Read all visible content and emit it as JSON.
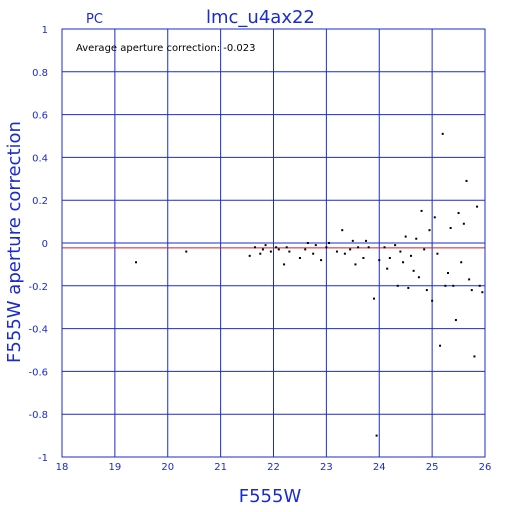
{
  "chart_data": {
    "type": "scatter",
    "title": "lmc_u4ax22",
    "tag": "PC",
    "annotation": "Average aperture correction: -0.023",
    "xlabel": "F555W",
    "ylabel": "F555W aperture correction",
    "xlim": [
      18,
      26
    ],
    "ylim": [
      -1,
      1
    ],
    "x_ticks": [
      18,
      19,
      20,
      21,
      22,
      23,
      24,
      25,
      26
    ],
    "y_ticks": [
      -1,
      -0.8,
      -0.6,
      -0.4,
      -0.2,
      0,
      0.2,
      0.4,
      0.6,
      0.8,
      1
    ],
    "x_tick_labels": [
      "18",
      "19",
      "20",
      "21",
      "22",
      "23",
      "24",
      "25",
      "26"
    ],
    "y_tick_labels": [
      "-1",
      "-0.8",
      "-0.6",
      "-0.4",
      "-0.2",
      "0",
      "0.2",
      "0.4",
      "0.6",
      "0.8",
      "1"
    ],
    "grid": true,
    "reference_lines": [
      {
        "y": 0,
        "color": "#1a2bd1"
      },
      {
        "y": -0.023,
        "color": "#c8202a"
      }
    ],
    "colors": {
      "axis": "#1a2bd1",
      "points": "#000000",
      "average_line": "#c8202a"
    },
    "points": [
      {
        "x": 19.4,
        "y": -0.09
      },
      {
        "x": 20.35,
        "y": -0.04
      },
      {
        "x": 21.55,
        "y": -0.06
      },
      {
        "x": 21.65,
        "y": -0.02
      },
      {
        "x": 21.75,
        "y": -0.05
      },
      {
        "x": 21.8,
        "y": -0.03
      },
      {
        "x": 21.85,
        "y": -0.01
      },
      {
        "x": 21.95,
        "y": -0.04
      },
      {
        "x": 22.05,
        "y": -0.02
      },
      {
        "x": 22.1,
        "y": -0.03
      },
      {
        "x": 22.2,
        "y": -0.1
      },
      {
        "x": 22.25,
        "y": -0.02
      },
      {
        "x": 22.3,
        "y": -0.04
      },
      {
        "x": 22.5,
        "y": -0.07
      },
      {
        "x": 22.6,
        "y": -0.03
      },
      {
        "x": 22.65,
        "y": 0.0
      },
      {
        "x": 22.75,
        "y": -0.05
      },
      {
        "x": 22.8,
        "y": -0.01
      },
      {
        "x": 22.9,
        "y": -0.08
      },
      {
        "x": 23.0,
        "y": -0.02
      },
      {
        "x": 23.05,
        "y": 0.0
      },
      {
        "x": 23.2,
        "y": -0.04
      },
      {
        "x": 23.3,
        "y": 0.06
      },
      {
        "x": 23.35,
        "y": -0.05
      },
      {
        "x": 23.45,
        "y": -0.03
      },
      {
        "x": 23.5,
        "y": 0.01
      },
      {
        "x": 23.55,
        "y": -0.1
      },
      {
        "x": 23.6,
        "y": -0.02
      },
      {
        "x": 23.7,
        "y": -0.07
      },
      {
        "x": 23.75,
        "y": 0.01
      },
      {
        "x": 23.8,
        "y": -0.02
      },
      {
        "x": 23.9,
        "y": -0.26
      },
      {
        "x": 23.95,
        "y": -0.9
      },
      {
        "x": 24.0,
        "y": -0.08
      },
      {
        "x": 24.1,
        "y": -0.02
      },
      {
        "x": 24.15,
        "y": -0.12
      },
      {
        "x": 24.2,
        "y": -0.07
      },
      {
        "x": 24.3,
        "y": -0.01
      },
      {
        "x": 24.35,
        "y": -0.2
      },
      {
        "x": 24.4,
        "y": -0.04
      },
      {
        "x": 24.45,
        "y": -0.09
      },
      {
        "x": 24.5,
        "y": 0.03
      },
      {
        "x": 24.55,
        "y": -0.21
      },
      {
        "x": 24.6,
        "y": -0.06
      },
      {
        "x": 24.65,
        "y": -0.13
      },
      {
        "x": 24.7,
        "y": 0.02
      },
      {
        "x": 24.75,
        "y": -0.16
      },
      {
        "x": 24.8,
        "y": 0.15
      },
      {
        "x": 24.85,
        "y": -0.03
      },
      {
        "x": 24.9,
        "y": -0.22
      },
      {
        "x": 24.95,
        "y": 0.06
      },
      {
        "x": 25.0,
        "y": -0.27
      },
      {
        "x": 25.05,
        "y": 0.12
      },
      {
        "x": 25.1,
        "y": -0.05
      },
      {
        "x": 25.15,
        "y": -0.48
      },
      {
        "x": 25.2,
        "y": 0.51
      },
      {
        "x": 25.25,
        "y": -0.2
      },
      {
        "x": 25.3,
        "y": -0.14
      },
      {
        "x": 25.35,
        "y": 0.07
      },
      {
        "x": 25.4,
        "y": -0.2
      },
      {
        "x": 25.45,
        "y": -0.36
      },
      {
        "x": 25.5,
        "y": 0.14
      },
      {
        "x": 25.55,
        "y": -0.09
      },
      {
        "x": 25.6,
        "y": 0.09
      },
      {
        "x": 25.65,
        "y": 0.29
      },
      {
        "x": 25.7,
        "y": -0.17
      },
      {
        "x": 25.75,
        "y": -0.22
      },
      {
        "x": 25.8,
        "y": -0.53
      },
      {
        "x": 25.85,
        "y": 0.17
      },
      {
        "x": 25.9,
        "y": -0.2
      },
      {
        "x": 25.95,
        "y": -0.23
      }
    ]
  }
}
